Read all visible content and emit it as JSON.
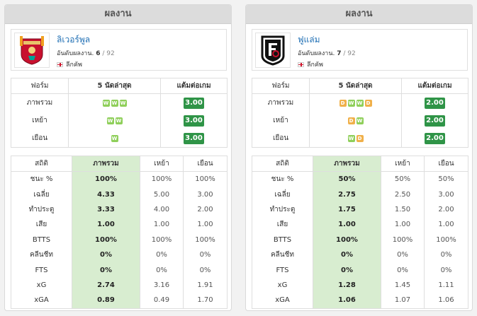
{
  "left": {
    "panel_title": "ผลงาน",
    "team": {
      "name": "ลิเวอร์พูล",
      "rank_label": "อันดับผลงาน.",
      "rank": "6",
      "rank_total": "/ 92",
      "league": "ลีกคัพ",
      "crest_icon": "liverpool-crest-icon"
    },
    "form_headers": [
      "ฟอร์ม",
      "5 นัดล่าสุด",
      "แต้มต่อเกม"
    ],
    "form_rows": [
      {
        "label": "ภาพรวม",
        "results": [
          "W",
          "W",
          "W"
        ],
        "ppg": "3.00"
      },
      {
        "label": "เหย้า",
        "results": [
          "W",
          "W"
        ],
        "ppg": "3.00"
      },
      {
        "label": "เยือน",
        "results": [
          "W"
        ],
        "ppg": "3.00"
      }
    ],
    "stats_headers": [
      "สถิติ",
      "ภาพรวม",
      "เหย้า",
      "เยือน"
    ],
    "stats_rows": [
      {
        "label": "ชนะ %",
        "overall": "100%",
        "home": "100%",
        "away": "100%"
      },
      {
        "label": "เฉลี่ย",
        "overall": "4.33",
        "home": "5.00",
        "away": "3.00"
      },
      {
        "label": "ทำประตู",
        "overall": "3.33",
        "home": "4.00",
        "away": "2.00"
      },
      {
        "label": "เสีย",
        "overall": "1.00",
        "home": "1.00",
        "away": "1.00"
      },
      {
        "label": "BTTS",
        "overall": "100%",
        "home": "100%",
        "away": "100%"
      },
      {
        "label": "คลีนชีท",
        "overall": "0%",
        "home": "0%",
        "away": "0%"
      },
      {
        "label": "FTS",
        "overall": "0%",
        "home": "0%",
        "away": "0%"
      },
      {
        "label": "xG",
        "overall": "2.74",
        "home": "3.16",
        "away": "1.91"
      },
      {
        "label": "xGA",
        "overall": "0.89",
        "home": "0.49",
        "away": "1.70"
      }
    ]
  },
  "right": {
    "panel_title": "ผลงาน",
    "team": {
      "name": "ฟูแล่ม",
      "rank_label": "อันดับผลงาน.",
      "rank": "7",
      "rank_total": "/ 92",
      "league": "ลีกคัพ",
      "crest_icon": "fulham-crest-icon"
    },
    "form_headers": [
      "ฟอร์ม",
      "5 นัดล่าสุด",
      "แต้มต่อเกม"
    ],
    "form_rows": [
      {
        "label": "ภาพรวม",
        "results": [
          "D",
          "W",
          "W",
          "D"
        ],
        "ppg": "2.00"
      },
      {
        "label": "เหย้า",
        "results": [
          "D",
          "W"
        ],
        "ppg": "2.00"
      },
      {
        "label": "เยือน",
        "results": [
          "W",
          "D"
        ],
        "ppg": "2.00"
      }
    ],
    "stats_headers": [
      "สถิติ",
      "ภาพรวม",
      "เหย้า",
      "เยือน"
    ],
    "stats_rows": [
      {
        "label": "ชนะ %",
        "overall": "50%",
        "home": "50%",
        "away": "50%"
      },
      {
        "label": "เฉลี่ย",
        "overall": "2.75",
        "home": "2.50",
        "away": "3.00"
      },
      {
        "label": "ทำประตู",
        "overall": "1.75",
        "home": "1.50",
        "away": "2.00"
      },
      {
        "label": "เสีย",
        "overall": "1.00",
        "home": "1.00",
        "away": "1.00"
      },
      {
        "label": "BTTS",
        "overall": "100%",
        "home": "100%",
        "away": "100%"
      },
      {
        "label": "คลีนชีท",
        "overall": "0%",
        "home": "0%",
        "away": "0%"
      },
      {
        "label": "FTS",
        "overall": "0%",
        "home": "0%",
        "away": "0%"
      },
      {
        "label": "xG",
        "overall": "1.28",
        "home": "1.45",
        "away": "1.11"
      },
      {
        "label": "xGA",
        "overall": "1.06",
        "home": "1.07",
        "away": "1.06"
      }
    ]
  },
  "colors": {
    "win": "#8fcf5a",
    "draw": "#f0b04a",
    "ppg": "#2f9447",
    "overall_highlight": "#d8edd0",
    "team_link": "#1f6fb4"
  }
}
